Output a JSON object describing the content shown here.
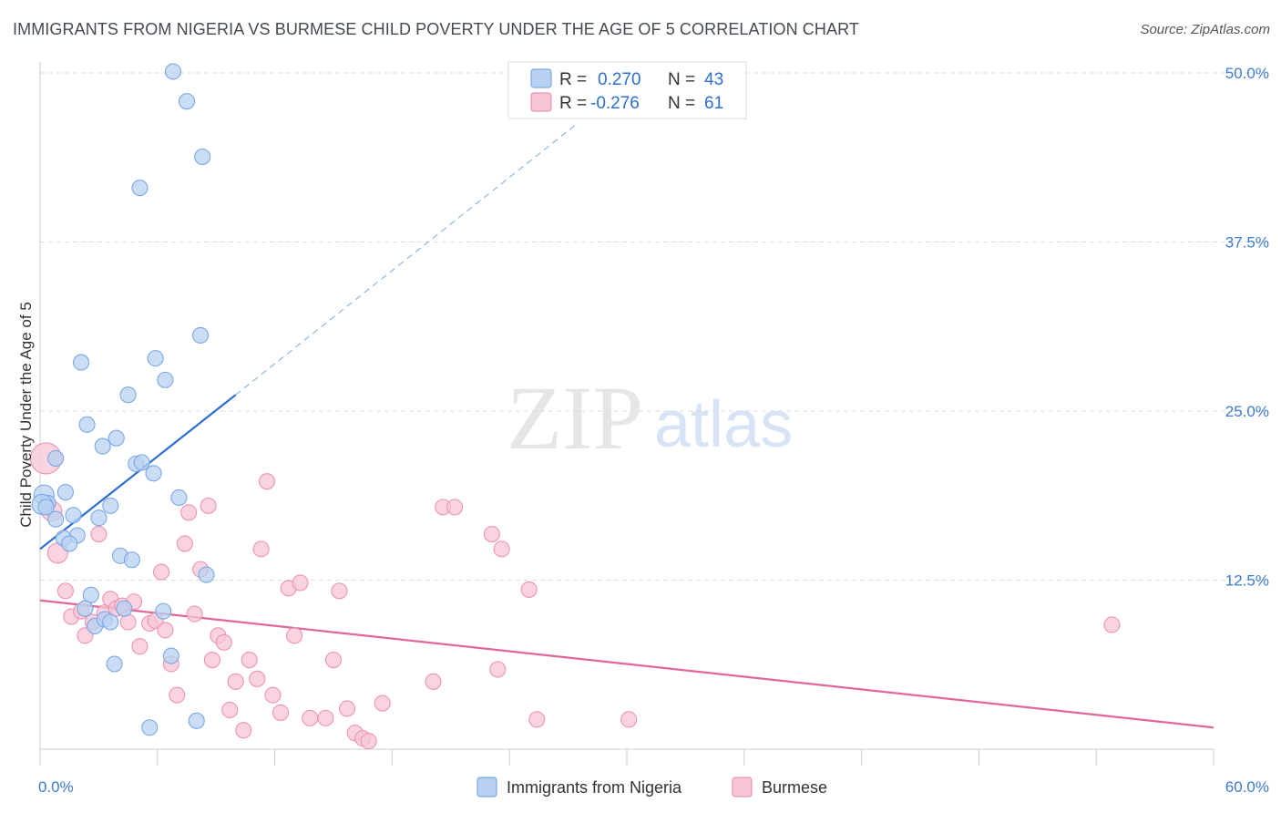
{
  "title": "IMMIGRANTS FROM NIGERIA VS BURMESE CHILD POVERTY UNDER THE AGE OF 5 CORRELATION CHART",
  "source": "Source: ZipAtlas.com",
  "watermark": {
    "zip": "ZIP",
    "atlas": "atlas"
  },
  "colors": {
    "blue_fill": "#b8d1f2",
    "blue_stroke": "#7aa8e6",
    "blue_line": "#2f6fd0",
    "pink_fill": "#f7c5d6",
    "pink_stroke": "#ec92b2",
    "pink_line": "#e0669a",
    "grid": "#dddddd",
    "tick_text": "#3b7bd4"
  },
  "legend": {
    "row1": {
      "r_label": "R =",
      "r_value": "0.270",
      "n_label": "N =",
      "n_value": "43"
    },
    "row2": {
      "r_label": "R =",
      "r_value": "-0.276",
      "n_label": "N =",
      "n_value": "61"
    }
  },
  "chart_data": {
    "type": "scatter",
    "title": "IMMIGRANTS FROM NIGERIA VS BURMESE CHILD POVERTY UNDER THE AGE OF 5 CORRELATION CHART",
    "xlabel": "",
    "ylabel": "Child Poverty Under the Age of 5",
    "xlim": [
      0,
      60
    ],
    "ylim": [
      0,
      50
    ],
    "x_tick_labels": [
      "0.0%",
      "60.0%"
    ],
    "y_ticks": [
      12.5,
      25.0,
      37.5,
      50.0
    ],
    "y_tick_labels": [
      "12.5%",
      "25.0%",
      "37.5%",
      "50.0%"
    ],
    "series": [
      {
        "name": "Immigrants from Nigeria",
        "color": "blue",
        "trend": {
          "x0": 0,
          "y0": 14.8,
          "x1": 10.0,
          "y1": 26.2,
          "dash_to_x": 27.5,
          "dash_to_y": 46.3
        },
        "points": [
          [
            6.8,
            50.1
          ],
          [
            7.5,
            47.9
          ],
          [
            8.3,
            43.8
          ],
          [
            5.1,
            41.5
          ],
          [
            8.2,
            30.6
          ],
          [
            2.1,
            28.6
          ],
          [
            5.9,
            28.9
          ],
          [
            6.4,
            27.3
          ],
          [
            4.5,
            26.2
          ],
          [
            2.4,
            24.0
          ],
          [
            3.9,
            23.0
          ],
          [
            3.2,
            22.4
          ],
          [
            0.8,
            21.5
          ],
          [
            4.9,
            21.1
          ],
          [
            5.2,
            21.2
          ],
          [
            5.8,
            20.4
          ],
          [
            0.2,
            18.8
          ],
          [
            0.4,
            18.2
          ],
          [
            1.3,
            19.0
          ],
          [
            7.1,
            18.6
          ],
          [
            3.6,
            18.0
          ],
          [
            0.8,
            17.0
          ],
          [
            1.7,
            17.3
          ],
          [
            3.0,
            17.1
          ],
          [
            1.9,
            15.8
          ],
          [
            1.2,
            15.6
          ],
          [
            1.5,
            15.2
          ],
          [
            4.1,
            14.3
          ],
          [
            4.7,
            14.0
          ],
          [
            8.5,
            12.9
          ],
          [
            2.6,
            11.4
          ],
          [
            2.3,
            10.4
          ],
          [
            4.3,
            10.4
          ],
          [
            6.3,
            10.2
          ],
          [
            2.8,
            9.1
          ],
          [
            3.3,
            9.6
          ],
          [
            3.6,
            9.4
          ],
          [
            6.7,
            6.9
          ],
          [
            3.8,
            6.3
          ],
          [
            5.6,
            1.6
          ],
          [
            8.0,
            2.1
          ],
          [
            0.1,
            18.1
          ],
          [
            0.3,
            17.9
          ]
        ]
      },
      {
        "name": "Burmese",
        "color": "pink",
        "trend": {
          "x0": 0,
          "y0": 11.0,
          "x1": 60,
          "y1": 1.6
        },
        "points": [
          [
            0.3,
            21.5
          ],
          [
            0.6,
            17.6
          ],
          [
            0.9,
            14.5
          ],
          [
            1.3,
            11.7
          ],
          [
            1.6,
            9.8
          ],
          [
            2.1,
            10.2
          ],
          [
            2.3,
            8.4
          ],
          [
            2.7,
            9.4
          ],
          [
            3.0,
            15.9
          ],
          [
            3.3,
            10.1
          ],
          [
            3.6,
            11.1
          ],
          [
            3.9,
            10.4
          ],
          [
            4.2,
            10.6
          ],
          [
            4.5,
            9.4
          ],
          [
            4.8,
            10.9
          ],
          [
            5.1,
            7.6
          ],
          [
            5.6,
            9.3
          ],
          [
            5.9,
            9.5
          ],
          [
            6.2,
            13.1
          ],
          [
            6.4,
            8.8
          ],
          [
            6.7,
            6.3
          ],
          [
            7.0,
            4.0
          ],
          [
            7.4,
            15.2
          ],
          [
            7.6,
            17.5
          ],
          [
            7.9,
            10.0
          ],
          [
            8.2,
            13.3
          ],
          [
            8.6,
            18.0
          ],
          [
            8.8,
            6.6
          ],
          [
            9.1,
            8.4
          ],
          [
            9.4,
            7.9
          ],
          [
            9.7,
            2.9
          ],
          [
            10.0,
            5.0
          ],
          [
            10.4,
            1.4
          ],
          [
            10.7,
            6.6
          ],
          [
            11.1,
            5.2
          ],
          [
            11.3,
            14.8
          ],
          [
            11.6,
            19.8
          ],
          [
            11.9,
            4.0
          ],
          [
            12.3,
            2.7
          ],
          [
            12.7,
            11.9
          ],
          [
            13.0,
            8.4
          ],
          [
            13.3,
            12.3
          ],
          [
            13.8,
            2.3
          ],
          [
            14.6,
            2.3
          ],
          [
            15.0,
            6.6
          ],
          [
            15.3,
            11.7
          ],
          [
            15.7,
            3.0
          ],
          [
            16.1,
            1.2
          ],
          [
            16.5,
            0.8
          ],
          [
            16.8,
            0.6
          ],
          [
            17.5,
            3.4
          ],
          [
            20.1,
            5.0
          ],
          [
            20.6,
            17.9
          ],
          [
            23.1,
            15.9
          ],
          [
            23.4,
            5.9
          ],
          [
            23.6,
            14.8
          ],
          [
            25.0,
            11.8
          ],
          [
            25.4,
            2.2
          ],
          [
            30.1,
            2.2
          ],
          [
            54.8,
            9.2
          ],
          [
            21.2,
            17.9
          ]
        ]
      }
    ]
  },
  "bottom_legend": {
    "series1": "Immigrants from Nigeria",
    "series2": "Burmese"
  }
}
